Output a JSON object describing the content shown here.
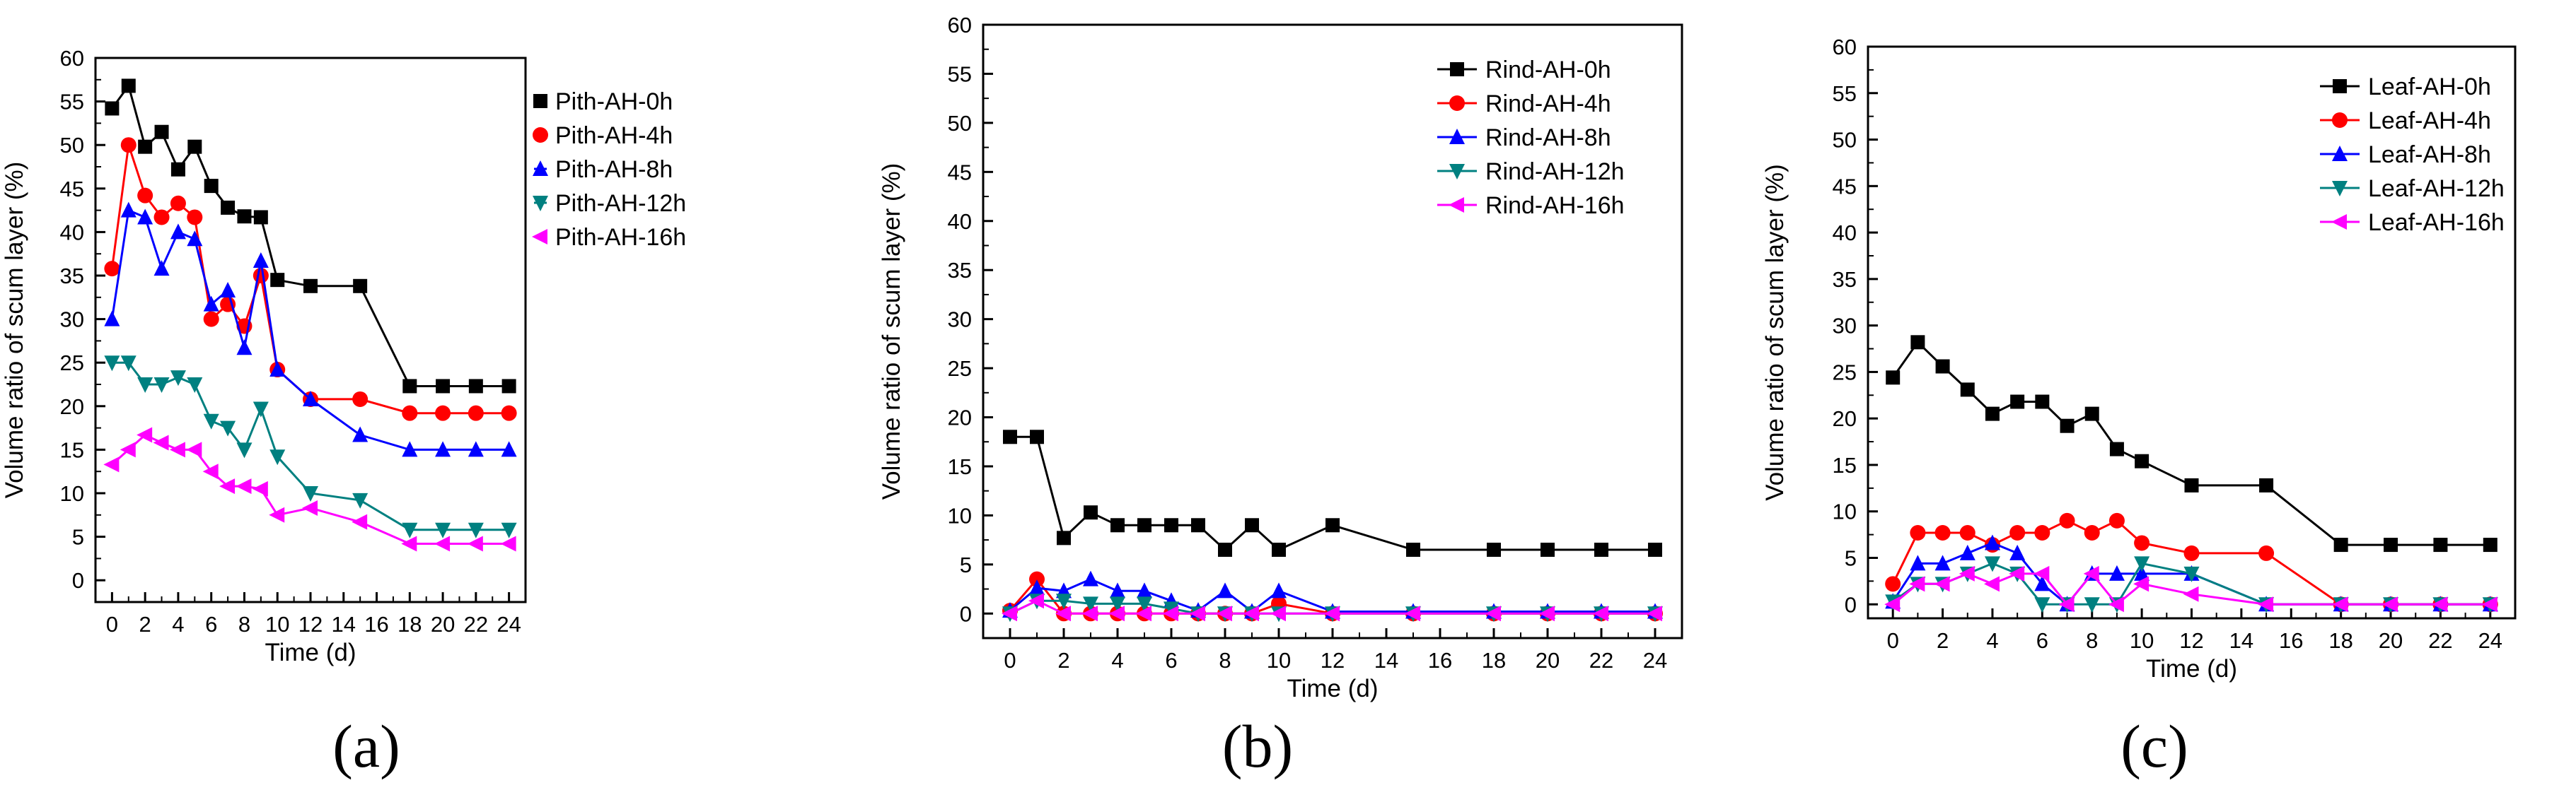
{
  "chart_data": [
    {
      "type": "line",
      "panel_label": "(a)",
      "xlabel": "Time (d)",
      "ylabel": "Volume ratio of scum layer (%)",
      "xlim": [
        -1,
        25
      ],
      "ylim": [
        -2.5,
        60
      ],
      "xticks": [
        "0",
        "2",
        "4",
        "6",
        "8",
        "10",
        "12",
        "14",
        "16",
        "18",
        "20",
        "22",
        "24"
      ],
      "yticks": [
        "0",
        "5",
        "10",
        "15",
        "20",
        "25",
        "30",
        "35",
        "40",
        "45",
        "50",
        "55",
        "60"
      ],
      "legend_position": "top-right",
      "x": [
        0,
        1,
        2,
        3,
        4,
        5,
        6,
        7,
        8,
        9,
        10,
        12,
        15,
        18,
        20,
        22,
        24
      ],
      "series": [
        {
          "name": "Pith-AH-0h",
          "color": "#000000",
          "marker": "square",
          "values": [
            54.2,
            56.8,
            49.8,
            51.5,
            47.2,
            49.8,
            45.3,
            42.8,
            41.8,
            41.7,
            34.5,
            33.8,
            33.8,
            22.3,
            22.3,
            22.3,
            22.3
          ]
        },
        {
          "name": "Pith-AH-4h",
          "color": "#ff0000",
          "marker": "circle",
          "values": [
            35.8,
            50.0,
            44.2,
            41.7,
            43.3,
            41.7,
            30.0,
            31.7,
            29.2,
            35.0,
            24.2,
            20.8,
            20.8,
            19.2,
            19.2,
            19.2,
            19.2
          ]
        },
        {
          "name": "Pith-AH-8h",
          "color": "#0000ff",
          "marker": "triangle-up",
          "values": [
            30.0,
            42.5,
            41.7,
            35.8,
            40.0,
            39.2,
            31.7,
            33.3,
            26.7,
            36.7,
            24.2,
            20.8,
            16.7,
            15.0,
            15.0,
            15.0,
            15.0
          ]
        },
        {
          "name": "Pith-AH-12h",
          "color": "#008080",
          "marker": "triangle-down",
          "values": [
            25.0,
            25.0,
            22.5,
            22.5,
            23.3,
            22.5,
            18.3,
            17.5,
            15.0,
            19.7,
            14.2,
            10.0,
            9.2,
            5.8,
            5.8,
            5.8,
            5.8
          ]
        },
        {
          "name": "Pith-AH-16h",
          "color": "#ff00ff",
          "marker": "triangle-left",
          "values": [
            13.3,
            15.0,
            16.7,
            15.8,
            15.0,
            15.0,
            12.5,
            10.8,
            10.8,
            10.5,
            7.5,
            8.3,
            6.7,
            4.2,
            4.2,
            4.2,
            4.2
          ]
        }
      ]
    },
    {
      "type": "line",
      "panel_label": "(b)",
      "xlabel": "Time (d)",
      "ylabel": "Volume ratio of scum layer (%)",
      "xlim": [
        -1,
        25
      ],
      "ylim": [
        -2.5,
        60
      ],
      "xticks": [
        "0",
        "2",
        "4",
        "6",
        "8",
        "10",
        "12",
        "14",
        "16",
        "18",
        "20",
        "22",
        "24"
      ],
      "yticks": [
        "0",
        "5",
        "10",
        "15",
        "20",
        "25",
        "30",
        "35",
        "40",
        "45",
        "50",
        "55",
        "60"
      ],
      "legend_position": "top-right",
      "x": [
        0,
        1,
        2,
        3,
        4,
        5,
        6,
        7,
        8,
        9,
        10,
        12,
        15,
        18,
        20,
        22,
        24
      ],
      "series": [
        {
          "name": "Rind-AH-0h",
          "color": "#000000",
          "marker": "square",
          "values": [
            18.0,
            18.0,
            7.7,
            10.3,
            9.0,
            9.0,
            9.0,
            9.0,
            6.5,
            9.0,
            6.5,
            9.0,
            6.5,
            6.5,
            6.5,
            6.5,
            6.5
          ]
        },
        {
          "name": "Rind-AH-4h",
          "color": "#ff0000",
          "marker": "circle",
          "values": [
            0.3,
            3.5,
            0.0,
            0.0,
            0.0,
            0.0,
            0.0,
            0.0,
            0.0,
            0.0,
            1.0,
            0.0,
            0.0,
            0.0,
            0.0,
            0.0,
            0.0
          ]
        },
        {
          "name": "Rind-AH-8h",
          "color": "#0000ff",
          "marker": "triangle-up",
          "values": [
            0.3,
            2.6,
            2.3,
            3.5,
            2.3,
            2.3,
            1.3,
            0.3,
            2.3,
            0.2,
            2.3,
            0.2,
            0.2,
            0.2,
            0.2,
            0.2,
            0.2
          ]
        },
        {
          "name": "Rind-AH-12h",
          "color": "#008080",
          "marker": "triangle-down",
          "values": [
            0.0,
            1.3,
            1.3,
            1.0,
            1.0,
            1.0,
            0.5,
            0.0,
            0.0,
            0.0,
            0.0,
            0.0,
            0.0,
            0.0,
            0.0,
            0.0,
            0.0
          ]
        },
        {
          "name": "Rind-AH-16h",
          "color": "#ff00ff",
          "marker": "triangle-left",
          "values": [
            0.0,
            1.3,
            0.0,
            0.0,
            0.0,
            0.0,
            0.0,
            0.0,
            0.0,
            0.0,
            0.0,
            0.0,
            0.0,
            0.0,
            0.0,
            0.0,
            0.0
          ]
        }
      ]
    },
    {
      "type": "line",
      "panel_label": "(c)",
      "xlabel": "Time (d)",
      "ylabel": "Volume ratio of scum layer (%)",
      "xlim": [
        -1,
        25
      ],
      "ylim": [
        -1.5,
        60
      ],
      "xticks": [
        "0",
        "2",
        "4",
        "6",
        "8",
        "10",
        "12",
        "14",
        "16",
        "18",
        "20",
        "22",
        "24"
      ],
      "yticks": [
        "0",
        "5",
        "10",
        "15",
        "20",
        "25",
        "30",
        "35",
        "40",
        "45",
        "50",
        "55",
        "60"
      ],
      "legend_position": "top-right",
      "x": [
        0,
        1,
        2,
        3,
        4,
        5,
        6,
        7,
        8,
        9,
        10,
        12,
        15,
        18,
        20,
        22,
        24
      ],
      "series": [
        {
          "name": "Leaf-AH-0h",
          "color": "#000000",
          "marker": "square",
          "values": [
            24.4,
            28.2,
            25.6,
            23.1,
            20.5,
            21.8,
            21.8,
            19.2,
            20.5,
            16.7,
            15.4,
            12.8,
            12.8,
            6.4,
            6.4,
            6.4,
            6.4
          ]
        },
        {
          "name": "Leaf-AH-4h",
          "color": "#ff0000",
          "marker": "circle",
          "values": [
            2.2,
            7.7,
            7.7,
            7.7,
            6.4,
            7.7,
            7.7,
            9.0,
            7.7,
            9.0,
            6.6,
            5.5,
            5.5,
            0.0,
            0.0,
            0.0,
            0.0
          ]
        },
        {
          "name": "Leaf-AH-8h",
          "color": "#0000ff",
          "marker": "triangle-up",
          "values": [
            0.3,
            4.4,
            4.4,
            5.5,
            6.6,
            5.5,
            2.2,
            0.0,
            3.3,
            3.3,
            3.3,
            3.3,
            0.0,
            0.0,
            0.0,
            0.0,
            0.0
          ]
        },
        {
          "name": "Leaf-AH-12h",
          "color": "#008080",
          "marker": "triangle-down",
          "values": [
            0.3,
            2.2,
            2.2,
            3.3,
            4.4,
            3.3,
            0.0,
            0.0,
            0.0,
            0.0,
            4.4,
            3.3,
            0.0,
            0.0,
            0.0,
            0.0,
            0.0
          ]
        },
        {
          "name": "Leaf-AH-16h",
          "color": "#ff00ff",
          "marker": "triangle-left",
          "values": [
            0.0,
            2.2,
            2.2,
            3.3,
            2.2,
            3.3,
            3.3,
            0.0,
            3.3,
            0.0,
            2.2,
            1.1,
            0.0,
            0.0,
            0.0,
            0.0,
            0.0
          ]
        }
      ]
    }
  ]
}
